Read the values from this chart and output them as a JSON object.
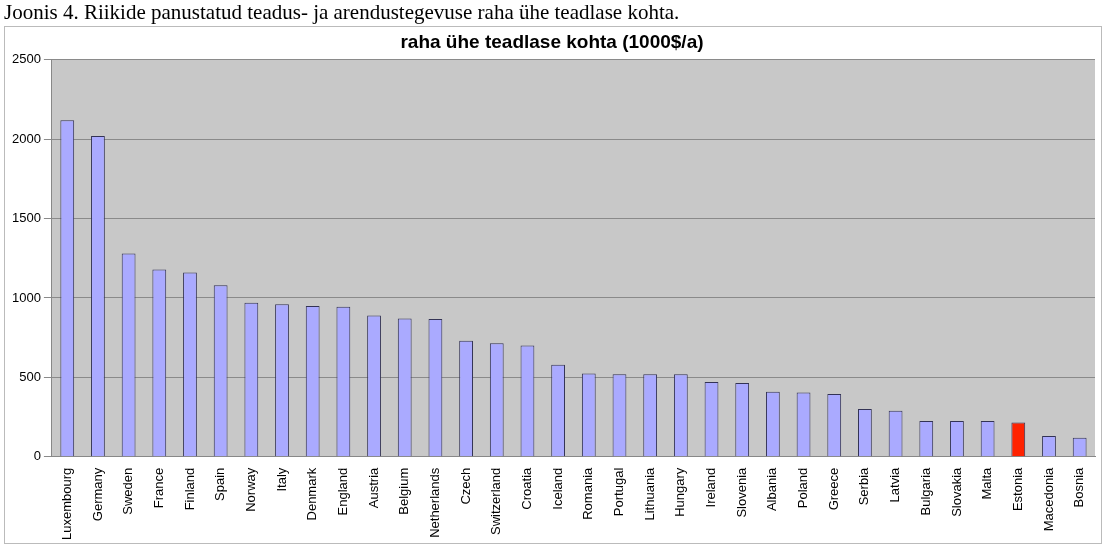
{
  "chart_data": {
    "type": "bar",
    "title": "raha ühe teadlase kohta (1000$/a)",
    "annotations": [
      "Joonis 4. Riikide panustatud teadus- ja arendustegevuse raha ühe teadlase kohta."
    ],
    "categories": [
      "Luxembourg",
      "Germany",
      "Sweden",
      "France",
      "Finland",
      "Spain",
      "Norway",
      "Italy",
      "Denmark",
      "England",
      "Austria",
      "Belgium",
      "Netherlands",
      "Czech",
      "Switzerland",
      "Croatia",
      "Iceland",
      "Romania",
      "Portugal",
      "Lithuania",
      "Hungary",
      "Ireland",
      "Slovenia",
      "Albania",
      "Poland",
      "Greece",
      "Serbia",
      "Latvia",
      "Bulgaria",
      "Slovakia",
      "Malta",
      "Estonia",
      "Macedonia",
      "Bosnia"
    ],
    "values": [
      2120,
      2020,
      1280,
      1180,
      1160,
      1080,
      970,
      960,
      950,
      945,
      890,
      870,
      868,
      730,
      715,
      700,
      580,
      525,
      520,
      520,
      520,
      470,
      465,
      410,
      405,
      395,
      300,
      290,
      225,
      225,
      225,
      215,
      130,
      120
    ],
    "colors": [
      "#aaaaff",
      "#aaaaff",
      "#aaaaff",
      "#aaaaff",
      "#aaaaff",
      "#aaaaff",
      "#aaaaff",
      "#aaaaff",
      "#aaaaff",
      "#aaaaff",
      "#aaaaff",
      "#aaaaff",
      "#aaaaff",
      "#aaaaff",
      "#aaaaff",
      "#aaaaff",
      "#aaaaff",
      "#aaaaff",
      "#aaaaff",
      "#aaaaff",
      "#aaaaff",
      "#aaaaff",
      "#aaaaff",
      "#aaaaff",
      "#aaaaff",
      "#aaaaff",
      "#aaaaff",
      "#aaaaff",
      "#aaaaff",
      "#aaaaff",
      "#aaaaff",
      "#ff2200",
      "#aaaaff",
      "#aaaaff"
    ],
    "ylim": [
      0,
      2500
    ],
    "yticks": [
      0,
      500,
      1000,
      1500,
      2000,
      2500
    ],
    "grid": "y",
    "legend": false
  }
}
